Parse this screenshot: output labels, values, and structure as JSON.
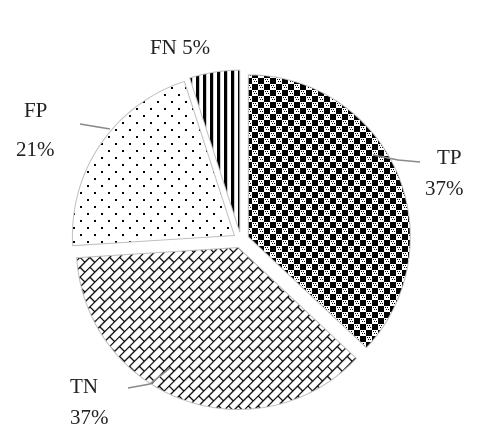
{
  "chart_data": {
    "type": "pie",
    "slices": [
      {
        "label": "TP",
        "value": 37,
        "value_text": "37%",
        "pattern": "checker"
      },
      {
        "label": "TN",
        "value": 37,
        "value_text": "37%",
        "pattern": "brick"
      },
      {
        "label": "FP",
        "value": 21,
        "value_text": "21%",
        "pattern": "dots"
      },
      {
        "label": "FN",
        "value": 5,
        "value_text": "5%",
        "pattern": "vertical-stripes"
      }
    ],
    "exploded": true,
    "start": "top, clockwise",
    "legend": "none",
    "colors": {
      "ink": "#000000",
      "paper": "#ffffff",
      "leader": "#8a8a8a"
    }
  }
}
